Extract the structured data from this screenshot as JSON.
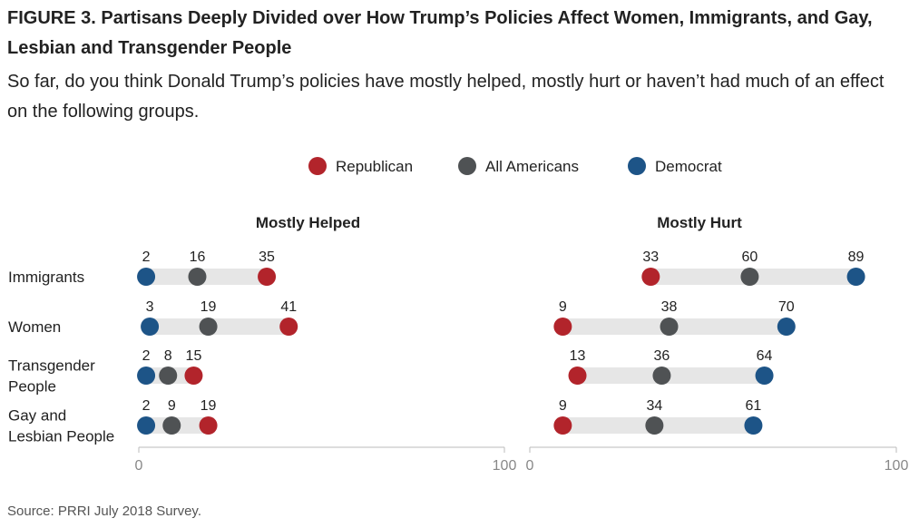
{
  "title": "FIGURE 3. Partisans Deeply Divided over How Trump’s Policies Affect Women, Immigrants, and Gay, Lesbian and Transgender People",
  "subtitle": "So far, do you think Donald Trump’s policies have mostly helped, mostly hurt or haven’t had much of an effect on the following groups.",
  "source": "Source: PRRI July 2018 Survey.",
  "colors": {
    "Republican": "#b2242b",
    "All Americans": "#4f5254",
    "Democrat": "#1d5487",
    "track": "#e6e6e6",
    "axis": "#bbbbbb"
  },
  "legend": [
    "Republican",
    "All Americans",
    "Democrat"
  ],
  "chart_data": [
    {
      "type": "dot",
      "title": "Mostly Helped",
      "categories": [
        "Immigrants",
        "Women",
        "Transgender People",
        "Gay and Lesbian People"
      ],
      "category_lines": [
        [
          "Immigrants"
        ],
        [
          "Women"
        ],
        [
          "Transgender",
          "People"
        ],
        [
          "Gay and",
          "Lesbian People"
        ]
      ],
      "series": [
        {
          "name": "Republican",
          "values": [
            35,
            41,
            15,
            19
          ]
        },
        {
          "name": "All Americans",
          "values": [
            16,
            19,
            8,
            9
          ]
        },
        {
          "name": "Democrat",
          "values": [
            2,
            3,
            2,
            2
          ]
        }
      ],
      "xlim": [
        0,
        100
      ],
      "xticks": [
        "0",
        "100"
      ]
    },
    {
      "type": "dot",
      "title": "Mostly Hurt",
      "categories": [
        "Immigrants",
        "Women",
        "Transgender People",
        "Gay and Lesbian People"
      ],
      "series": [
        {
          "name": "Republican",
          "values": [
            33,
            9,
            13,
            9
          ]
        },
        {
          "name": "All Americans",
          "values": [
            60,
            38,
            36,
            34
          ]
        },
        {
          "name": "Democrat",
          "values": [
            89,
            70,
            64,
            61
          ]
        }
      ],
      "xlim": [
        0,
        100
      ],
      "xticks": [
        "0",
        "100"
      ]
    }
  ]
}
